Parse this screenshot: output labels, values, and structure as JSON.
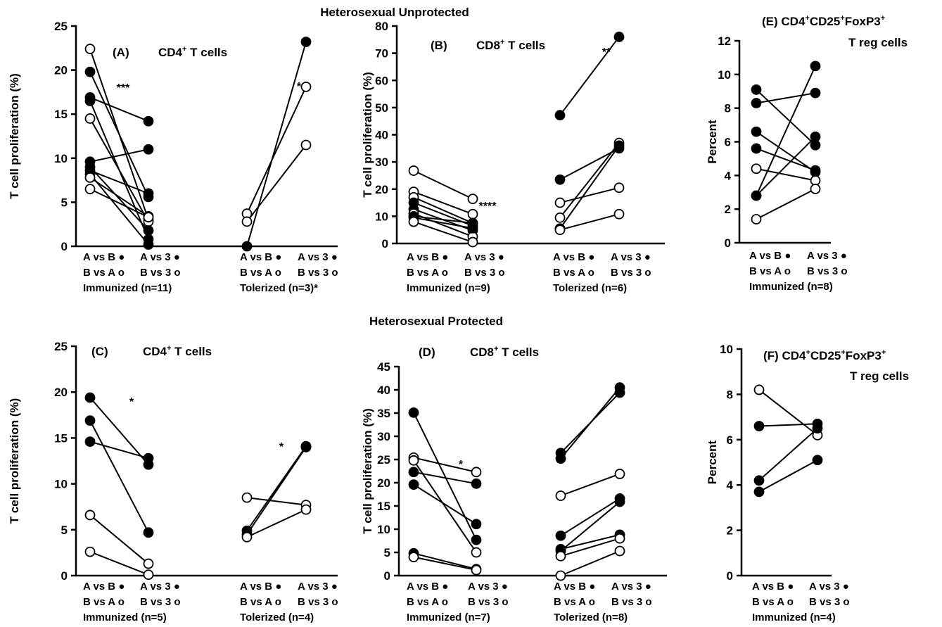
{
  "sections": [
    "Heterosexual Unprotected",
    "Heterosexual Protected"
  ],
  "chart_data": [
    {
      "panel": "A",
      "type": "line",
      "title": [
        "(A)",
        "CD4",
        "+",
        " T cells"
      ],
      "ylabel": "T cell proliferation (%)",
      "ylim": [
        0,
        25
      ],
      "yticks": [
        0,
        5,
        10,
        15,
        20,
        25
      ],
      "groups": [
        {
          "lines": [
            "A vs B ●",
            "B vs A o",
            "Immunized (n=11)"
          ],
          "right": [
            "A vs 3 ●",
            "B vs 3 o",
            ""
          ],
          "sig": "***",
          "pairs": [
            {
              "from": 22.4,
              "to": 3.0,
              "filled": false
            },
            {
              "from": 19.8,
              "to": 5.6,
              "filled": true
            },
            {
              "from": 16.9,
              "to": 14.2,
              "filled": true
            },
            {
              "from": 16.5,
              "to": 0.8,
              "filled": true
            },
            {
              "from": 14.5,
              "to": 2.8,
              "filled": false
            },
            {
              "from": 9.6,
              "to": 11.0,
              "filled": true
            },
            {
              "from": 9.0,
              "to": 1.8,
              "filled": true
            },
            {
              "from": 8.6,
              "to": 6.0,
              "filled": true
            },
            {
              "from": 8.2,
              "to": 0.2,
              "filled": true
            },
            {
              "from": 7.8,
              "to": 3.4,
              "filled": false
            },
            {
              "from": 6.5,
              "to": 3.3,
              "filled": false
            }
          ]
        },
        {
          "lines": [
            "A vs B ●",
            "B vs A o",
            "Tolerized (n=3)*"
          ],
          "right": [
            "A vs 3 ●",
            "B vs 3 o",
            ""
          ],
          "sig": "*",
          "pairs": [
            {
              "from": 0.0,
              "to": 23.2,
              "filled": true
            },
            {
              "from": 3.7,
              "to": 18.1,
              "filled": false
            },
            {
              "from": 2.8,
              "to": 11.5,
              "filled": false
            }
          ]
        }
      ]
    },
    {
      "panel": "B",
      "type": "line",
      "title": [
        "(B)",
        "CD8",
        "+",
        " T cells"
      ],
      "ylabel": "T cell proliferation (%)",
      "ylim": [
        0,
        80
      ],
      "yticks": [
        0,
        10,
        20,
        30,
        40,
        50,
        60,
        70,
        80
      ],
      "groups": [
        {
          "lines": [
            "A vs B ●",
            "B vs A o",
            "Immunized (n=9)"
          ],
          "right": [
            "A vs 3 ●",
            "B vs 3 o",
            ""
          ],
          "sig": "****",
          "pairs": [
            {
              "from": 26.8,
              "to": 16.4,
              "filled": false
            },
            {
              "from": 19.0,
              "to": 10.8,
              "filled": false
            },
            {
              "from": 17.0,
              "to": 7.5,
              "filled": false
            },
            {
              "from": 15.0,
              "to": 6.5,
              "filled": true
            },
            {
              "from": 12.6,
              "to": 4.8,
              "filled": true
            },
            {
              "from": 11.0,
              "to": 2.5,
              "filled": false
            },
            {
              "from": 10.0,
              "to": 7.5,
              "filled": true
            },
            {
              "from": 9.5,
              "to": 5.6,
              "filled": true
            },
            {
              "from": 8.0,
              "to": 0.5,
              "filled": false
            }
          ]
        },
        {
          "lines": [
            "A vs B ●",
            "B vs A o",
            "Tolerized (n=6)"
          ],
          "right": [
            "A vs 3 ●",
            "B vs 3 o",
            ""
          ],
          "sig": "**",
          "pairs": [
            {
              "from": 47.2,
              "to": 76.0,
              "filled": true
            },
            {
              "from": 23.5,
              "to": 35.0,
              "filled": true
            },
            {
              "from": 15.0,
              "to": 20.5,
              "filled": false
            },
            {
              "from": 9.5,
              "to": 37.0,
              "filled": false
            },
            {
              "from": 5.5,
              "to": 36.0,
              "filled": true
            },
            {
              "from": 5.0,
              "to": 10.8,
              "filled": false
            }
          ]
        }
      ]
    },
    {
      "panel": "E",
      "type": "line",
      "title": [
        "(E)",
        "CD4",
        "+",
        "CD25",
        "+",
        "FoxP3",
        "+",
        "T reg cells"
      ],
      "ylabel": "Percent",
      "ylim": [
        0,
        12
      ],
      "yticks": [
        0,
        2,
        4,
        6,
        8,
        10,
        12
      ],
      "groups": [
        {
          "lines": [
            "A vs B ●",
            "B vs A o",
            "Immunized (n=8)"
          ],
          "right": [
            "A vs 3 ●",
            "B vs 3 o",
            ""
          ],
          "sig": "",
          "pairs": [
            {
              "from": 9.1,
              "to": 5.8,
              "filled": true
            },
            {
              "from": 8.3,
              "to": 8.9,
              "filled": true
            },
            {
              "from": 6.6,
              "to": 4.2,
              "filled": true
            },
            {
              "from": 5.6,
              "to": 4.3,
              "filled": true
            },
            {
              "from": 4.4,
              "to": 3.7,
              "filled": false
            },
            {
              "from": 2.8,
              "to": 10.5,
              "filled": true
            },
            {
              "from": 2.8,
              "to": 6.3,
              "filled": true
            },
            {
              "from": 1.4,
              "to": 3.2,
              "filled": false
            }
          ]
        }
      ]
    },
    {
      "panel": "C",
      "type": "line",
      "title": [
        "(C)",
        "CD4",
        "+",
        " T cells"
      ],
      "ylabel": "T cell proliferation (%)",
      "ylim": [
        0,
        25
      ],
      "yticks": [
        0,
        5,
        10,
        15,
        20,
        25
      ],
      "groups": [
        {
          "lines": [
            "A vs B ●",
            "B vs A o",
            "Immunized (n=5)"
          ],
          "right": [
            "A vs 3 ●",
            "B vs 3 o",
            ""
          ],
          "sig": "*",
          "pairs": [
            {
              "from": 19.4,
              "to": 12.1,
              "filled": true
            },
            {
              "from": 16.9,
              "to": 4.7,
              "filled": true
            },
            {
              "from": 14.6,
              "to": 12.8,
              "filled": true
            },
            {
              "from": 6.6,
              "to": 1.3,
              "filled": false
            },
            {
              "from": 2.6,
              "to": 0.1,
              "filled": false
            }
          ]
        },
        {
          "lines": [
            "A vs B ●",
            "B vs A o",
            "Tolerized (n=4)"
          ],
          "right": [
            "A vs 3 ●",
            "B vs 3 o",
            ""
          ],
          "sig": "*",
          "pairs": [
            {
              "from": 8.5,
              "to": 7.7,
              "filled": false
            },
            {
              "from": 4.9,
              "to": 14.1,
              "filled": true
            },
            {
              "from": 4.5,
              "to": 14.0,
              "filled": true
            },
            {
              "from": 4.2,
              "to": 7.2,
              "filled": false
            }
          ]
        }
      ]
    },
    {
      "panel": "D",
      "type": "line",
      "title": [
        "(D)",
        "CD8",
        "+",
        " T cells"
      ],
      "ylabel": "T cell proliferation (%)",
      "ylim": [
        0,
        45
      ],
      "yticks": [
        0,
        5,
        10,
        15,
        20,
        25,
        30,
        35,
        40,
        45
      ],
      "groups": [
        {
          "lines": [
            "A vs B ●",
            "B vs A o",
            "Immunized (n=7)"
          ],
          "right": [
            "A vs 3 ●",
            "B vs 3 o",
            ""
          ],
          "sig": "*",
          "pairs": [
            {
              "from": 35.1,
              "to": 7.7,
              "filled": true
            },
            {
              "from": 25.4,
              "to": 22.3,
              "filled": false
            },
            {
              "from": 24.8,
              "to": 5.0,
              "filled": false
            },
            {
              "from": 22.3,
              "to": 19.8,
              "filled": true
            },
            {
              "from": 19.6,
              "to": 11.1,
              "filled": true
            },
            {
              "from": 4.8,
              "to": 1.4,
              "filled": true
            },
            {
              "from": 4.0,
              "to": 1.2,
              "filled": false
            }
          ]
        },
        {
          "lines": [
            "A vs B ●",
            "B vs A o",
            "Tolerized (n=8)"
          ],
          "right": [
            "A vs 3 ●",
            "B vs 3 o",
            ""
          ],
          "sig": "",
          "pairs": [
            {
              "from": 26.4,
              "to": 39.4,
              "filled": true
            },
            {
              "from": 25.2,
              "to": 40.5,
              "filled": true
            },
            {
              "from": 17.2,
              "to": 21.9,
              "filled": false
            },
            {
              "from": 8.6,
              "to": 16.6,
              "filled": true
            },
            {
              "from": 5.7,
              "to": 8.8,
              "filled": true
            },
            {
              "from": 5.3,
              "to": 15.9,
              "filled": true
            },
            {
              "from": 4.2,
              "to": 8.0,
              "filled": false
            },
            {
              "from": 0.0,
              "to": 5.3,
              "filled": false
            }
          ]
        }
      ]
    },
    {
      "panel": "F",
      "type": "line",
      "title": [
        "(F)",
        "CD4",
        "+",
        "CD25",
        "+",
        "FoxP3",
        "+",
        "T reg cells"
      ],
      "ylabel": "Percent",
      "ylim": [
        0,
        10
      ],
      "yticks": [
        0,
        2,
        4,
        6,
        8,
        10
      ],
      "groups": [
        {
          "lines": [
            "A vs B ●",
            "B vs A o",
            "Immunized (n=4)"
          ],
          "right": [
            "A vs 3 ●",
            "B vs 3 o",
            ""
          ],
          "sig": "",
          "pairs": [
            {
              "from": 8.2,
              "to": 6.2,
              "filled": false
            },
            {
              "from": 6.6,
              "to": 6.7,
              "filled": true
            },
            {
              "from": 4.2,
              "to": 6.5,
              "filled": true
            },
            {
              "from": 3.7,
              "to": 5.1,
              "filled": true
            }
          ]
        }
      ]
    }
  ]
}
